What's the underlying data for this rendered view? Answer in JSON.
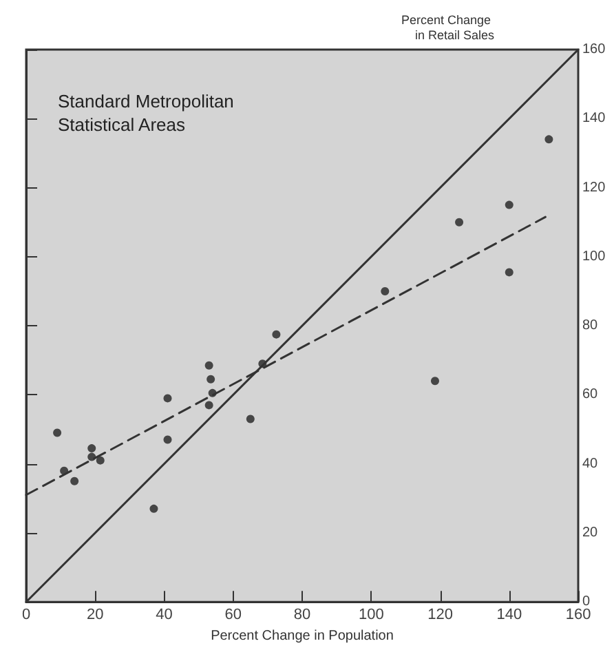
{
  "chart_data": {
    "type": "scatter",
    "title": "Standard Metropolitan Statistical Areas",
    "xlabel": "Percent Change in Population",
    "ylabel": "Percent Change in Retail Sales",
    "xlim": [
      0,
      160
    ],
    "ylim": [
      0,
      160
    ],
    "xticks": [
      0,
      20,
      40,
      60,
      80,
      100,
      120,
      140,
      160
    ],
    "yticks": [
      0,
      20,
      40,
      60,
      80,
      100,
      120,
      140,
      160
    ],
    "grid": false,
    "series": [
      {
        "color": "#222222",
        "marker": "circle",
        "x": [
          9,
          11,
          14,
          19,
          19,
          21.5,
          37,
          41,
          41,
          53,
          53.5,
          53,
          54,
          65,
          68.5,
          72.5,
          104,
          118.5,
          125.5,
          140,
          140,
          151.5
        ],
        "values": [
          49,
          38,
          35,
          44.5,
          42,
          41,
          27,
          47,
          59,
          68.5,
          64.5,
          57,
          60.5,
          53,
          69,
          77.5,
          90,
          64,
          110,
          115,
          95.5,
          134
        ]
      },
      {
        "type": "line",
        "color": "#333333",
        "marker": "none",
        "line_style": "solid",
        "x": [
          0,
          160
        ],
        "values": [
          0,
          160
        ]
      },
      {
        "type": "line",
        "color": "#333333",
        "marker": "none",
        "line_style": "dashed",
        "x": [
          0,
          150.5
        ],
        "values": [
          31,
          111.5
        ]
      }
    ]
  }
}
